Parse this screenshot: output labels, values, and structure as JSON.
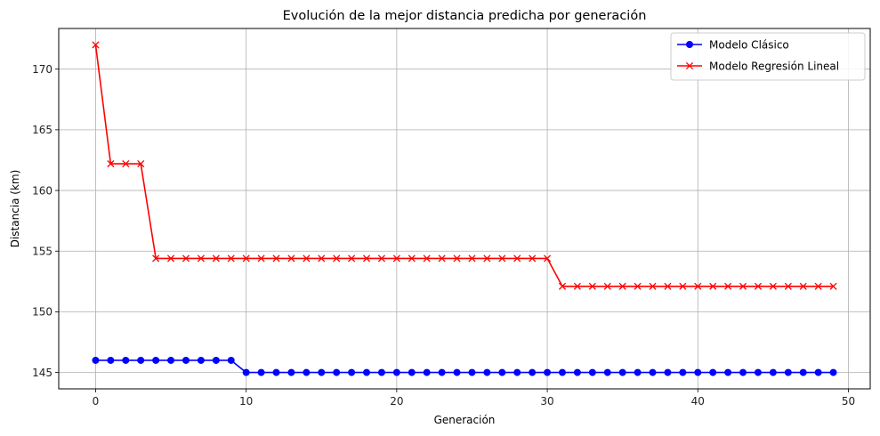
{
  "chart_data": {
    "type": "line",
    "title": "Evolución de la mejor distancia predicha por generación",
    "xlabel": "Generación",
    "ylabel": "Distancia (km)",
    "xlim": [
      -2.45,
      51.45
    ],
    "ylim": [
      143.65,
      173.35
    ],
    "xticks": [
      0,
      10,
      20,
      30,
      40,
      50
    ],
    "yticks": [
      145,
      150,
      155,
      160,
      165,
      170
    ],
    "xtick_labels": [
      "0",
      "10",
      "20",
      "30",
      "40",
      "50"
    ],
    "ytick_labels": [
      "145",
      "150",
      "155",
      "160",
      "165",
      "170"
    ],
    "grid": true,
    "legend_position": "top-right",
    "series": [
      {
        "name": "Modelo Clásico",
        "color": "#0000ff",
        "marker": "circle",
        "x": [
          0,
          1,
          2,
          3,
          4,
          5,
          6,
          7,
          8,
          9,
          10,
          11,
          12,
          13,
          14,
          15,
          16,
          17,
          18,
          19,
          20,
          21,
          22,
          23,
          24,
          25,
          26,
          27,
          28,
          29,
          30,
          31,
          32,
          33,
          34,
          35,
          36,
          37,
          38,
          39,
          40,
          41,
          42,
          43,
          44,
          45,
          46,
          47,
          48,
          49
        ],
        "y": [
          146,
          146,
          146,
          146,
          146,
          146,
          146,
          146,
          146,
          146,
          145,
          145,
          145,
          145,
          145,
          145,
          145,
          145,
          145,
          145,
          145,
          145,
          145,
          145,
          145,
          145,
          145,
          145,
          145,
          145,
          145,
          145,
          145,
          145,
          145,
          145,
          145,
          145,
          145,
          145,
          145,
          145,
          145,
          145,
          145,
          145,
          145,
          145,
          145,
          145
        ]
      },
      {
        "name": "Modelo Regresión Lineal",
        "color": "#ff0000",
        "marker": "x",
        "x": [
          0,
          1,
          2,
          3,
          4,
          5,
          6,
          7,
          8,
          9,
          10,
          11,
          12,
          13,
          14,
          15,
          16,
          17,
          18,
          19,
          20,
          21,
          22,
          23,
          24,
          25,
          26,
          27,
          28,
          29,
          30,
          31,
          32,
          33,
          34,
          35,
          36,
          37,
          38,
          39,
          40,
          41,
          42,
          43,
          44,
          45,
          46,
          47,
          48,
          49
        ],
        "y": [
          172,
          162.2,
          162.2,
          162.2,
          154.4,
          154.4,
          154.4,
          154.4,
          154.4,
          154.4,
          154.4,
          154.4,
          154.4,
          154.4,
          154.4,
          154.4,
          154.4,
          154.4,
          154.4,
          154.4,
          154.4,
          154.4,
          154.4,
          154.4,
          154.4,
          154.4,
          154.4,
          154.4,
          154.4,
          154.4,
          154.4,
          152.1,
          152.1,
          152.1,
          152.1,
          152.1,
          152.1,
          152.1,
          152.1,
          152.1,
          152.1,
          152.1,
          152.1,
          152.1,
          152.1,
          152.1,
          152.1,
          152.1,
          152.1,
          152.1
        ]
      }
    ]
  }
}
